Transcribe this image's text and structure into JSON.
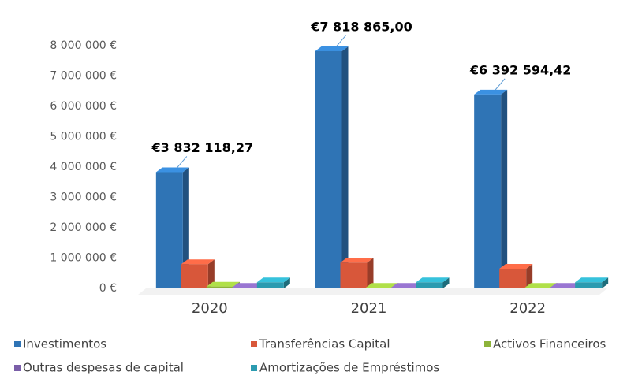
{
  "chart_data": {
    "type": "bar3d",
    "categories": [
      "2020",
      "2021",
      "2022"
    ],
    "series": [
      {
        "name": "Investimentos",
        "color": "#2f74b5",
        "values": [
          3832118.27,
          7818865.0,
          6392594.42
        ],
        "value_labels": [
          "€3 832 118,27",
          "€7 818 865,00",
          "€6 392 594,42"
        ]
      },
      {
        "name": "Transferências Capital",
        "color": "#d8573a",
        "values": [
          800000,
          850000,
          650000
        ]
      },
      {
        "name": "Activos Financeiros",
        "color": "#8db33a",
        "values": [
          60000,
          20000,
          20000
        ]
      },
      {
        "name": "Outras despesas de capital",
        "color": "#7a5ea8",
        "values": [
          20000,
          20000,
          20000
        ]
      },
      {
        "name": "Amortizações de Empréstimos",
        "color": "#2b9bb0",
        "values": [
          200000,
          200000,
          200000
        ]
      }
    ],
    "ylim": [
      0,
      8000000
    ],
    "yticks": [
      {
        "value": 0,
        "label": "0 €"
      },
      {
        "value": 1000000,
        "label": "1 000 000 €"
      },
      {
        "value": 2000000,
        "label": "2 000 000 €"
      },
      {
        "value": 3000000,
        "label": "3 000 000 €"
      },
      {
        "value": 4000000,
        "label": "4 000 000 €"
      },
      {
        "value": 5000000,
        "label": "5 000 000 €"
      },
      {
        "value": 6000000,
        "label": "6 000 000 €"
      },
      {
        "value": 7000000,
        "label": "7 000 000 €"
      },
      {
        "value": 8000000,
        "label": "8 000 000 €"
      }
    ],
    "legend": "bottom"
  }
}
